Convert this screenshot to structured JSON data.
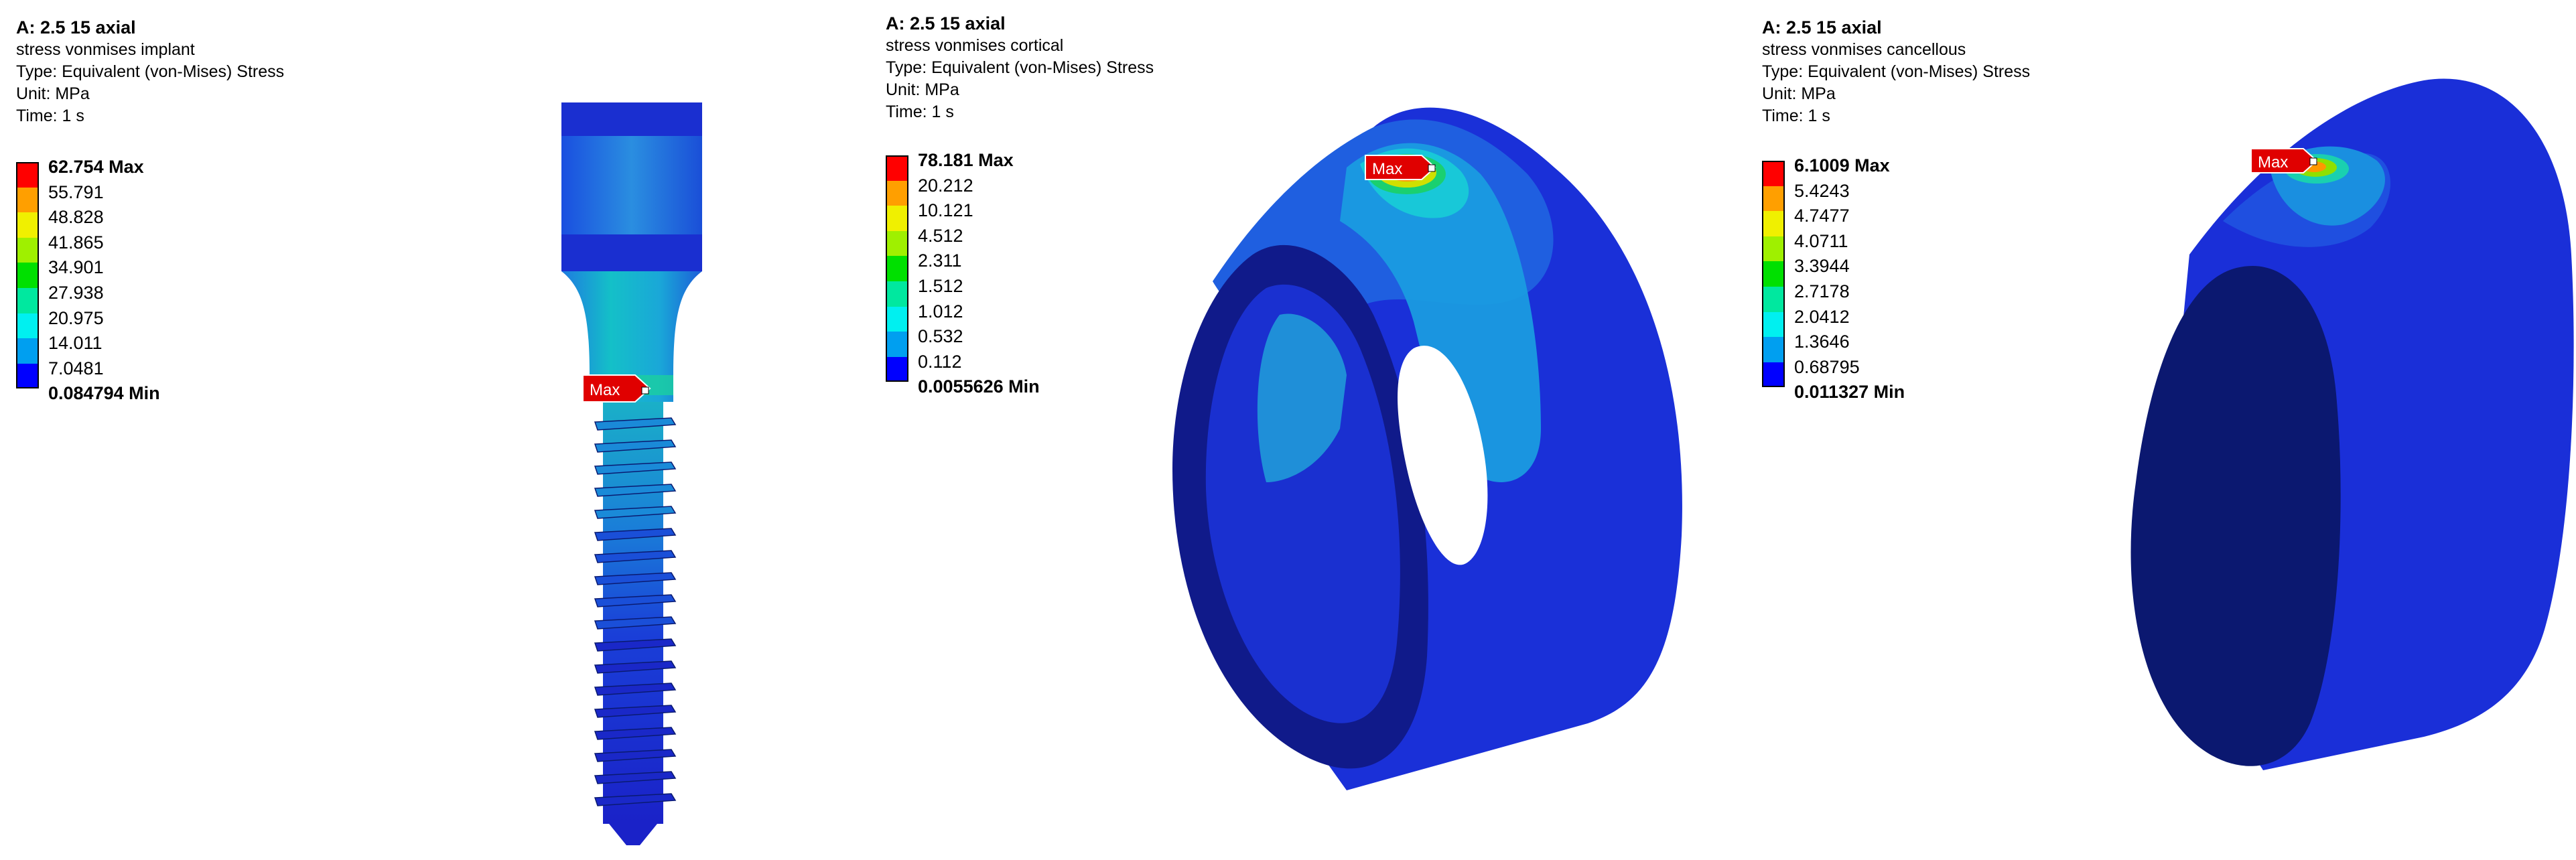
{
  "panels": [
    {
      "header": {
        "title": "A: 2.5 15 axial",
        "name": "stress vonmises implant",
        "type": "Type: Equivalent (von-Mises) Stress",
        "unit": "Unit: MPa",
        "time": "Time: 1 s"
      },
      "legend": {
        "max_label": "62.754 Max",
        "values": [
          "55.791",
          "48.828",
          "41.865",
          "34.901",
          "27.938",
          "20.975",
          "14.011",
          "7.0481"
        ],
        "min_label": "0.084794 Min",
        "colors": [
          "#ff0000",
          "#ff9f00",
          "#f0f000",
          "#9ff000",
          "#00e000",
          "#00e89f",
          "#00f0f0",
          "#009ff0",
          "#0000ff"
        ]
      },
      "max_tag": "Max"
    },
    {
      "header": {
        "title": "A: 2.5 15 axial",
        "name": "stress vonmises cortical",
        "type": "Type: Equivalent (von-Mises) Stress",
        "unit": "Unit: MPa",
        "time": "Time: 1 s"
      },
      "legend": {
        "max_label": "78.181 Max",
        "values": [
          "20.212",
          "10.121",
          "4.512",
          "2.311",
          "1.512",
          "1.012",
          "0.532",
          "0.112"
        ],
        "min_label": "0.0055626 Min",
        "colors": [
          "#ff0000",
          "#ff9f00",
          "#f0f000",
          "#9ff000",
          "#00e000",
          "#00e89f",
          "#00f0f0",
          "#009ff0",
          "#0000ff"
        ]
      },
      "max_tag": "Max"
    },
    {
      "header": {
        "title": "A: 2.5 15 axial",
        "name": "stress vonmises cancellous",
        "type": "Type: Equivalent (von-Mises) Stress",
        "unit": "Unit: MPa",
        "time": "Time: 1 s"
      },
      "legend": {
        "max_label": "6.1009 Max",
        "values": [
          "5.4243",
          "4.7477",
          "4.0711",
          "3.3944",
          "2.7178",
          "2.0412",
          "1.3646",
          "0.68795"
        ],
        "min_label": "0.011327 Min",
        "colors": [
          "#ff0000",
          "#ff9f00",
          "#f0f000",
          "#9ff000",
          "#00e000",
          "#00e89f",
          "#00f0f0",
          "#009ff0",
          "#0000ff"
        ]
      },
      "max_tag": "Max"
    }
  ]
}
